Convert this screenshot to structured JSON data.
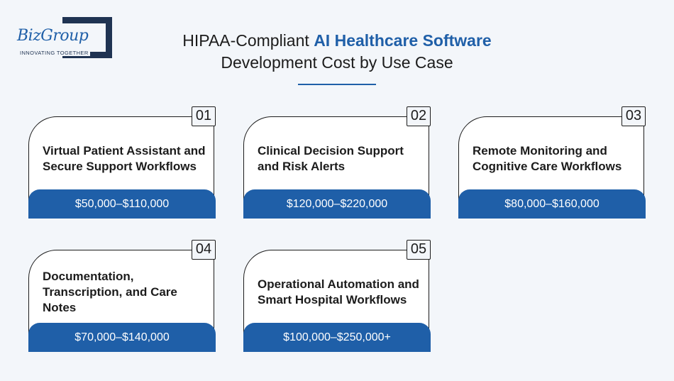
{
  "logo": {
    "name": "BizGroup",
    "tagline": "INNOVATING TOGETHER"
  },
  "title": {
    "prefix": "HIPAA-Compliant ",
    "highlight": "AI Healthcare Software",
    "line2": "Development Cost by Use Case"
  },
  "colors": {
    "accent": "#1f5fa8",
    "logo_dark": "#1f3352",
    "background": "#f3f6fa"
  },
  "cards": [
    {
      "number": "01",
      "text": "Virtual Patient Assistant and Secure Support Workflows",
      "price": "$50,000–$110,000"
    },
    {
      "number": "02",
      "text": "Clinical Decision Support and Risk Alerts",
      "price": "$120,000–$220,000"
    },
    {
      "number": "03",
      "text": "Remote Monitoring and Cognitive Care Workflows",
      "price": "$80,000–$160,000"
    },
    {
      "number": "04",
      "text": "Documentation, Transcription, and Care Notes",
      "price": "$70,000–$140,000"
    },
    {
      "number": "05",
      "text": "Operational Automation and Smart Hospital Workflows",
      "price": "$100,000–$250,000+"
    }
  ]
}
